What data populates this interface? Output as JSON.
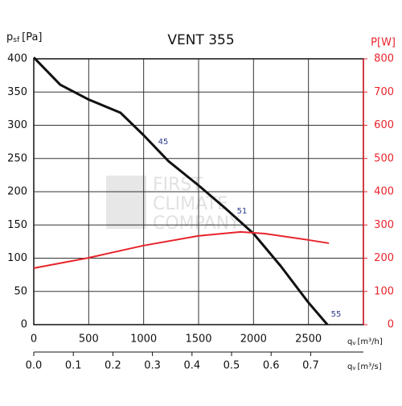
{
  "chart_data": {
    "type": "line",
    "title": "VENT 355",
    "y_label": [
      "p",
      "sf",
      "[Pa]"
    ],
    "y2_label": "P[W]",
    "x_label": [
      "q",
      "v",
      "[m³/h]"
    ],
    "x2_label": [
      "q",
      "v",
      "[m³/s]"
    ],
    "xlim": [
      0,
      3000
    ],
    "xticks": [
      0,
      500,
      1000,
      1500,
      2000,
      2500
    ],
    "x2lim": [
      0,
      0.8333
    ],
    "x2ticks": [
      {
        "value": 0,
        "label": "0.0"
      },
      0.1,
      0.2,
      0.3,
      0.4,
      0.5,
      0.6,
      0.7
    ],
    "ylim": [
      0,
      400
    ],
    "yticks": [
      0,
      50,
      100,
      150,
      200,
      250,
      300,
      350,
      400
    ],
    "y2lim": [
      0,
      800
    ],
    "y2ticks": [
      0,
      100,
      200,
      300,
      400,
      500,
      600,
      700,
      800
    ],
    "grid": true,
    "series": [
      {
        "color": "#111111",
        "x": [
          0,
          241,
          496,
          788,
          1000,
          1226,
          1496,
          1737,
          2000,
          2248,
          2496,
          2672
        ],
        "values": [
          402,
          361,
          339,
          319,
          285,
          246,
          210,
          176,
          137,
          88,
          34,
          0
        ]
      },
      {
        "color": "#e8242c",
        "axis": "y2",
        "x": [
          0,
          496,
          1000,
          1496,
          1883,
          2102,
          2496,
          2686
        ],
        "values": [
          170,
          201,
          238,
          267,
          279,
          274,
          255,
          245
        ]
      }
    ],
    "annotations": [
      "45",
      "51",
      "55"
    ],
    "watermark": [
      "FIRST",
      "CLIMATE",
      "COMPANY"
    ]
  }
}
